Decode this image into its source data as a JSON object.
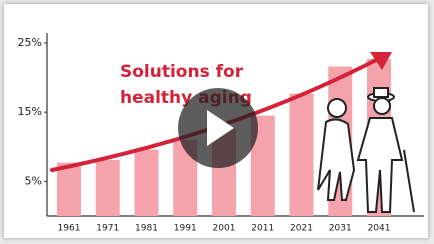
{
  "chart_data": {
    "type": "bar",
    "annotations": [
      "Solutions for",
      "healthy aging"
    ],
    "categories": [
      "1961",
      "1971",
      "1981",
      "1991",
      "2001",
      "2011",
      "2021",
      "2031",
      "2041"
    ],
    "values": [
      7.7,
      8.1,
      9.6,
      11,
      12.7,
      14.5,
      17.7,
      21.6,
      22.7
    ],
    "color": "#f4a3ab",
    "ylim": [
      0,
      25
    ],
    "yticks": [
      {
        "value": 5,
        "label": "5%"
      },
      {
        "value": 15,
        "label": "15%"
      },
      {
        "value": 25,
        "label": "25%"
      }
    ],
    "grid": false
  }
}
